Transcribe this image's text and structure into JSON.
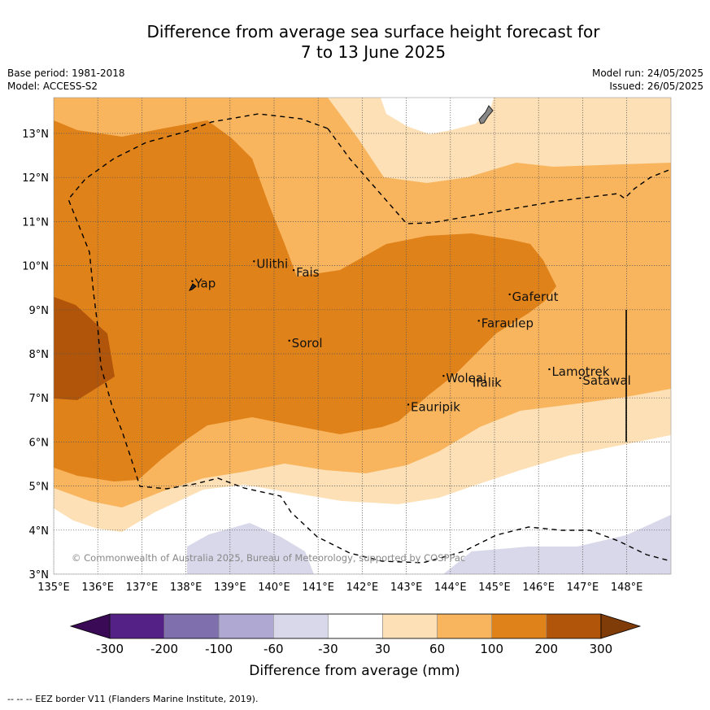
{
  "title": {
    "line1": "Difference from average sea surface height forecast for",
    "line2": "7 to 13 June 2025"
  },
  "meta": {
    "base_period": "Base period: 1981-2018",
    "model": "Model: ACCESS-S2",
    "model_run": "Model run: 24/05/2025",
    "issued": "Issued: 26/05/2025"
  },
  "map": {
    "lon_labels": [
      "135°E",
      "136°E",
      "137°E",
      "138°E",
      "139°E",
      "140°E",
      "141°E",
      "142°E",
      "143°E",
      "144°E",
      "145°E",
      "146°E",
      "147°E",
      "148°E"
    ],
    "lat_labels": [
      "3°N",
      "4°N",
      "5°N",
      "6°N",
      "7°N",
      "8°N",
      "9°N",
      "10°N",
      "11°N",
      "12°N",
      "13°N"
    ],
    "lon_range": [
      135,
      149
    ],
    "lat_range": [
      3,
      13.8
    ],
    "copyright": "© Commonwealth of Australia 2025, Bureau of Meteorology, supported by COSPPac",
    "places": [
      {
        "name": "Yap",
        "lon": 138.2,
        "lat": 9.5
      },
      {
        "name": "Ulithi",
        "lon": 139.6,
        "lat": 9.95
      },
      {
        "name": "Fais",
        "lon": 140.5,
        "lat": 9.75
      },
      {
        "name": "Gaferut",
        "lon": 145.4,
        "lat": 9.2
      },
      {
        "name": "Faraulep",
        "lon": 144.7,
        "lat": 8.6
      },
      {
        "name": "Sorol",
        "lon": 140.4,
        "lat": 8.15
      },
      {
        "name": "Woleai",
        "lon": 143.9,
        "lat": 7.35
      },
      {
        "name": "Ifalik",
        "lon": 144.5,
        "lat": 7.25
      },
      {
        "name": "Lamotrek",
        "lon": 146.3,
        "lat": 7.5
      },
      {
        "name": "Satawal",
        "lon": 147.0,
        "lat": 7.3
      },
      {
        "name": "Eauripik",
        "lon": 143.1,
        "lat": 6.7
      }
    ]
  },
  "legend": {
    "title": "Difference from average (mm)",
    "ticks": [
      "-300",
      "-200",
      "-100",
      "-60",
      "-30",
      "30",
      "60",
      "100",
      "200",
      "300"
    ],
    "colors": [
      "#3b0a57",
      "#542287",
      "#7f70ad",
      "#aea8d3",
      "#d8d8ea",
      "#ffffff",
      "#fde0b6",
      "#f9b55e",
      "#e0821a",
      "#b05509",
      "#7f3b08"
    ]
  },
  "footnote": "--  --  -- EEZ border V11 (Flanders Marine Institute, 2019)."
}
